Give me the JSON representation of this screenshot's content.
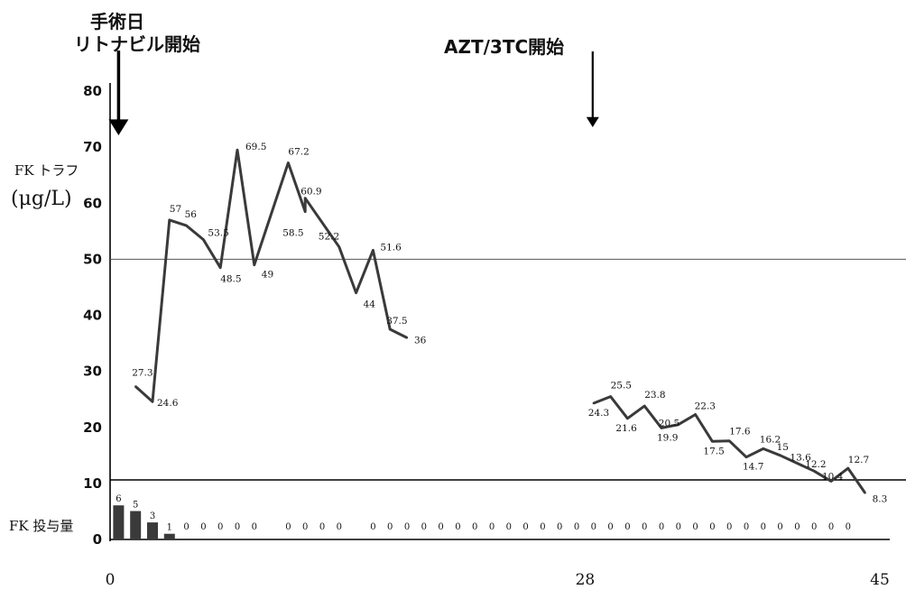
{
  "annotations": {
    "surgery_line1": "手術日",
    "surgery_line2": "リトナビル開始",
    "azt_start": "AZT/3TC開始"
  },
  "chart_data": {
    "type": "line",
    "ylabel": "FK トラフ",
    "ylabel_unit": "(μg/L)",
    "ylim": [
      0,
      80
    ],
    "y_ticks": [
      "80",
      "70",
      "60",
      "50",
      "40",
      "30",
      "20",
      "10",
      "0"
    ],
    "x_ticks": [
      "0",
      "28",
      "45"
    ],
    "xlim": [
      0,
      45
    ],
    "grid": false,
    "reference_line": 50,
    "colors": {
      "line": "#3a3a3a",
      "bar": "#3a3a3a",
      "axis": "#000000"
    },
    "series": [
      {
        "points": [
          {
            "x": 1.5,
            "y": 27.3,
            "label": "27.3"
          },
          {
            "x": 2.5,
            "y": 24.6,
            "label": "24.6"
          },
          {
            "x": 3.5,
            "y": 57,
            "label": "57"
          },
          {
            "x": 4.5,
            "y": 56,
            "label": "56"
          },
          {
            "x": 5.5,
            "y": 53.5,
            "label": "53.5"
          },
          {
            "x": 6.5,
            "y": 48.5,
            "label": "48.5"
          },
          {
            "x": 7.5,
            "y": 69.5,
            "label": "69.5"
          },
          {
            "x": 8.5,
            "y": 49,
            "label": "49"
          },
          {
            "x": 10.5,
            "y": 67.2,
            "label": "67.2"
          },
          {
            "x": 11.5,
            "y": 58.5,
            "label": "58.5"
          },
          {
            "x": 11.5,
            "y": 60.9,
            "label": "60.9"
          },
          {
            "x": 13.5,
            "y": 52.2,
            "label": "52.2"
          },
          {
            "x": 14.5,
            "y": 44,
            "label": "44"
          },
          {
            "x": 15.5,
            "y": 51.6,
            "label": "51.6"
          },
          {
            "x": 16.5,
            "y": 37.5,
            "label": "37.5"
          },
          {
            "x": 17.5,
            "y": 36,
            "label": "36"
          }
        ]
      },
      {
        "points": [
          {
            "x": 28.5,
            "y": 24.3,
            "label": "24.3"
          },
          {
            "x": 29.5,
            "y": 25.5,
            "label": "25.5"
          },
          {
            "x": 30.5,
            "y": 21.6,
            "label": "21.6"
          },
          {
            "x": 31.5,
            "y": 23.8,
            "label": "23.8"
          },
          {
            "x": 32.5,
            "y": 19.9,
            "label": "19.9"
          },
          {
            "x": 33.5,
            "y": 20.5,
            "label": "20.5"
          },
          {
            "x": 34.5,
            "y": 22.3,
            "label": "22.3"
          },
          {
            "x": 35.5,
            "y": 17.5,
            "label": "17.5"
          },
          {
            "x": 36.5,
            "y": 17.6,
            "label": "17.6"
          },
          {
            "x": 37.5,
            "y": 14.7,
            "label": "14.7"
          },
          {
            "x": 38.5,
            "y": 16.2,
            "label": "16.2"
          },
          {
            "x": 39.5,
            "y": 15,
            "label": "15"
          },
          {
            "x": 40.5,
            "y": 13.6,
            "label": "13.6"
          },
          {
            "x": 41.5,
            "y": 12.2,
            "label": "12.2"
          },
          {
            "x": 42.5,
            "y": 10.4,
            "label": "10.4"
          },
          {
            "x": 43.5,
            "y": 12.7,
            "label": "12.7"
          },
          {
            "x": 44.5,
            "y": 8.3,
            "label": "8.3"
          }
        ]
      }
    ],
    "dose": {
      "label": "FK 投与量",
      "values": [
        {
          "x": 0.5,
          "v": 6
        },
        {
          "x": 1.5,
          "v": 5
        },
        {
          "x": 2.5,
          "v": 3
        },
        {
          "x": 3.5,
          "v": 1
        },
        {
          "x": 4.5,
          "v": 0
        },
        {
          "x": 5.5,
          "v": 0
        },
        {
          "x": 6.5,
          "v": 0
        },
        {
          "x": 7.5,
          "v": 0
        },
        {
          "x": 8.5,
          "v": 0
        },
        {
          "x": 10.5,
          "v": 0
        },
        {
          "x": 11.5,
          "v": 0
        },
        {
          "x": 12.5,
          "v": 0
        },
        {
          "x": 13.5,
          "v": 0
        },
        {
          "x": 15.5,
          "v": 0
        },
        {
          "x": 16.5,
          "v": 0
        },
        {
          "x": 17.5,
          "v": 0
        },
        {
          "x": 18.5,
          "v": 0
        },
        {
          "x": 19.5,
          "v": 0
        },
        {
          "x": 20.5,
          "v": 0
        },
        {
          "x": 21.5,
          "v": 0
        },
        {
          "x": 22.5,
          "v": 0
        },
        {
          "x": 23.5,
          "v": 0
        },
        {
          "x": 24.5,
          "v": 0
        },
        {
          "x": 25.5,
          "v": 0
        },
        {
          "x": 26.5,
          "v": 0
        },
        {
          "x": 27.5,
          "v": 0
        },
        {
          "x": 28.5,
          "v": 0
        },
        {
          "x": 29.5,
          "v": 0
        },
        {
          "x": 30.5,
          "v": 0
        },
        {
          "x": 31.5,
          "v": 0
        },
        {
          "x": 32.5,
          "v": 0
        },
        {
          "x": 33.5,
          "v": 0
        },
        {
          "x": 34.5,
          "v": 0
        },
        {
          "x": 35.5,
          "v": 0
        },
        {
          "x": 36.5,
          "v": 0
        },
        {
          "x": 37.5,
          "v": 0
        },
        {
          "x": 38.5,
          "v": 0
        },
        {
          "x": 39.5,
          "v": 0
        },
        {
          "x": 40.5,
          "v": 0
        },
        {
          "x": 41.5,
          "v": 0
        },
        {
          "x": 42.5,
          "v": 0
        },
        {
          "x": 43.5,
          "v": 0
        }
      ]
    },
    "events": [
      {
        "x": 0.5,
        "label_key": "surgery"
      },
      {
        "x": 28.5,
        "label_key": "azt_start"
      }
    ]
  }
}
